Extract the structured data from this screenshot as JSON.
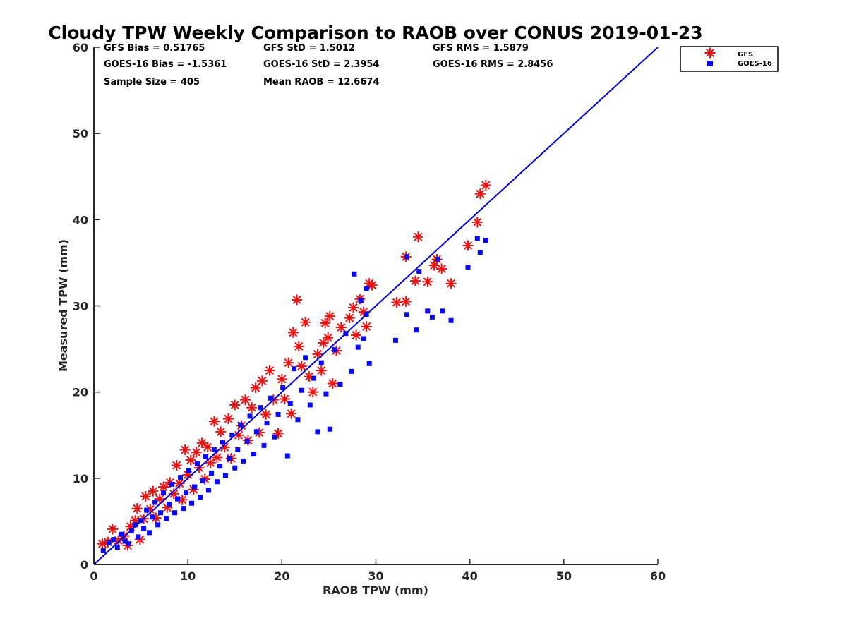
{
  "chart_data": {
    "type": "scatter",
    "title": "Cloudy TPW Weekly Comparison to RAOB over CONUS 2019-01-23",
    "xlabel": "RAOB TPW (mm)",
    "ylabel": "Measured TPW (mm)",
    "xlim": [
      0,
      60
    ],
    "ylim": [
      0,
      60
    ],
    "xticks": [
      "0",
      "10",
      "20",
      "30",
      "40",
      "50",
      "60"
    ],
    "yticks": [
      "0",
      "10",
      "20",
      "30",
      "40",
      "50",
      "60"
    ],
    "grid": false,
    "legend_position": "top-right",
    "stats": [
      [
        "GFS Bias = 0.51765",
        "GFS StD = 1.5012",
        "GFS RMS = 1.5879"
      ],
      [
        "GOES-16 Bias = -1.5361",
        "GOES-16 StD = 2.3954",
        "GOES-16 RMS = 2.8456"
      ],
      [
        "Sample Size = 405",
        "Mean RAOB = 12.6674"
      ]
    ],
    "reference_line": {
      "x": [
        0,
        60
      ],
      "y": [
        0,
        60
      ],
      "color": "#0000cc"
    },
    "series": [
      {
        "name": "GFS",
        "marker": "asterisk",
        "color": "#ee1111",
        "points": [
          [
            0.9,
            2.4
          ],
          [
            1.5,
            2.6
          ],
          [
            2.0,
            4.1
          ],
          [
            2.6,
            2.8
          ],
          [
            3.2,
            3.3
          ],
          [
            3.6,
            2.2
          ],
          [
            3.9,
            4.4
          ],
          [
            4.4,
            5.1
          ],
          [
            4.6,
            6.5
          ],
          [
            4.9,
            2.9
          ],
          [
            5.3,
            5.3
          ],
          [
            5.5,
            7.9
          ],
          [
            6.0,
            6.4
          ],
          [
            6.3,
            8.5
          ],
          [
            6.6,
            5.4
          ],
          [
            7.0,
            7.6
          ],
          [
            7.4,
            9.0
          ],
          [
            7.8,
            6.6
          ],
          [
            8.1,
            9.5
          ],
          [
            8.5,
            8.2
          ],
          [
            8.8,
            11.5
          ],
          [
            9.1,
            9.4
          ],
          [
            9.4,
            7.5
          ],
          [
            9.7,
            13.3
          ],
          [
            10.0,
            10.4
          ],
          [
            10.3,
            12.1
          ],
          [
            10.6,
            8.7
          ],
          [
            10.9,
            13.0
          ],
          [
            11.2,
            11.2
          ],
          [
            11.5,
            14.1
          ],
          [
            11.8,
            9.9
          ],
          [
            12.1,
            13.6
          ],
          [
            12.4,
            11.8
          ],
          [
            12.8,
            16.6
          ],
          [
            13.1,
            12.4
          ],
          [
            13.5,
            15.4
          ],
          [
            13.9,
            13.6
          ],
          [
            14.3,
            16.9
          ],
          [
            14.6,
            12.3
          ],
          [
            15.0,
            18.5
          ],
          [
            15.4,
            15.0
          ],
          [
            15.7,
            16.1
          ],
          [
            16.1,
            19.1
          ],
          [
            16.4,
            14.4
          ],
          [
            16.8,
            18.2
          ],
          [
            17.2,
            20.5
          ],
          [
            17.6,
            15.3
          ],
          [
            17.9,
            21.3
          ],
          [
            18.3,
            17.4
          ],
          [
            18.7,
            22.5
          ],
          [
            19.1,
            19.1
          ],
          [
            19.6,
            15.2
          ],
          [
            20.0,
            21.5
          ],
          [
            20.3,
            19.2
          ],
          [
            20.7,
            23.4
          ],
          [
            21.0,
            17.5
          ],
          [
            21.2,
            26.9
          ],
          [
            21.6,
            30.7
          ],
          [
            21.8,
            25.3
          ],
          [
            22.1,
            23.0
          ],
          [
            22.5,
            28.1
          ],
          [
            22.9,
            21.8
          ],
          [
            23.3,
            20.0
          ],
          [
            23.8,
            24.4
          ],
          [
            24.2,
            22.5
          ],
          [
            24.4,
            25.7
          ],
          [
            24.6,
            28.0
          ],
          [
            24.9,
            26.3
          ],
          [
            25.1,
            28.8
          ],
          [
            25.4,
            21.0
          ],
          [
            25.8,
            24.8
          ],
          [
            26.3,
            27.5
          ],
          [
            27.2,
            28.6
          ],
          [
            27.6,
            29.8
          ],
          [
            27.9,
            26.6
          ],
          [
            28.3,
            30.8
          ],
          [
            28.7,
            29.3
          ],
          [
            29.0,
            27.6
          ],
          [
            29.3,
            32.6
          ],
          [
            29.6,
            32.4
          ],
          [
            32.2,
            30.4
          ],
          [
            33.2,
            30.5
          ],
          [
            33.2,
            35.7
          ],
          [
            34.2,
            32.9
          ],
          [
            34.5,
            38.0
          ],
          [
            35.5,
            32.8
          ],
          [
            36.2,
            34.7
          ],
          [
            36.5,
            35.4
          ],
          [
            37.0,
            34.3
          ],
          [
            38.0,
            32.6
          ],
          [
            39.8,
            37.0
          ],
          [
            40.8,
            39.7
          ],
          [
            41.1,
            43.0
          ],
          [
            41.7,
            44.0
          ]
        ]
      },
      {
        "name": "GOES-16",
        "marker": "square",
        "color": "#0a0af0",
        "points": [
          [
            1.0,
            1.6
          ],
          [
            1.6,
            2.5
          ],
          [
            2.1,
            2.9
          ],
          [
            2.5,
            2.0
          ],
          [
            2.9,
            3.5
          ],
          [
            3.3,
            2.7
          ],
          [
            3.7,
            2.4
          ],
          [
            4.0,
            3.9
          ],
          [
            4.4,
            4.6
          ],
          [
            4.7,
            3.2
          ],
          [
            5.0,
            5.1
          ],
          [
            5.3,
            4.2
          ],
          [
            5.6,
            6.3
          ],
          [
            5.9,
            3.7
          ],
          [
            6.2,
            5.5
          ],
          [
            6.5,
            7.2
          ],
          [
            6.8,
            4.6
          ],
          [
            7.1,
            6.0
          ],
          [
            7.4,
            8.3
          ],
          [
            7.7,
            5.3
          ],
          [
            8.0,
            7.0
          ],
          [
            8.3,
            9.3
          ],
          [
            8.6,
            6.0
          ],
          [
            8.9,
            7.6
          ],
          [
            9.2,
            10.1
          ],
          [
            9.5,
            6.5
          ],
          [
            9.8,
            8.3
          ],
          [
            10.1,
            10.9
          ],
          [
            10.4,
            7.1
          ],
          [
            10.7,
            9.0
          ],
          [
            11.0,
            11.7
          ],
          [
            11.3,
            7.8
          ],
          [
            11.6,
            9.7
          ],
          [
            11.9,
            12.5
          ],
          [
            12.2,
            8.6
          ],
          [
            12.5,
            10.6
          ],
          [
            12.8,
            13.3
          ],
          [
            13.1,
            9.6
          ],
          [
            13.4,
            11.4
          ],
          [
            13.7,
            14.2
          ],
          [
            14.0,
            10.3
          ],
          [
            14.4,
            12.3
          ],
          [
            14.7,
            15.0
          ],
          [
            15.0,
            11.2
          ],
          [
            15.3,
            13.3
          ],
          [
            15.6,
            16.2
          ],
          [
            15.9,
            12.0
          ],
          [
            16.3,
            14.3
          ],
          [
            16.6,
            17.2
          ],
          [
            17.0,
            12.8
          ],
          [
            17.3,
            15.4
          ],
          [
            17.7,
            18.2
          ],
          [
            18.1,
            13.8
          ],
          [
            18.4,
            16.4
          ],
          [
            18.8,
            19.3
          ],
          [
            19.2,
            14.8
          ],
          [
            19.6,
            17.4
          ],
          [
            20.1,
            20.5
          ],
          [
            20.6,
            12.6
          ],
          [
            20.9,
            18.7
          ],
          [
            21.3,
            22.7
          ],
          [
            21.7,
            16.8
          ],
          [
            22.1,
            20.2
          ],
          [
            22.5,
            24.0
          ],
          [
            23.0,
            18.5
          ],
          [
            23.4,
            21.6
          ],
          [
            23.8,
            15.4
          ],
          [
            24.2,
            23.4
          ],
          [
            24.7,
            19.8
          ],
          [
            25.1,
            15.7
          ],
          [
            25.6,
            24.9
          ],
          [
            26.2,
            20.9
          ],
          [
            26.8,
            26.8
          ],
          [
            27.4,
            22.4
          ],
          [
            27.7,
            33.7
          ],
          [
            28.1,
            25.2
          ],
          [
            28.4,
            30.6
          ],
          [
            28.7,
            26.2
          ],
          [
            29.0,
            29.0
          ],
          [
            29.3,
            23.3
          ],
          [
            29.0,
            32.0
          ],
          [
            32.1,
            26.0
          ],
          [
            33.3,
            35.7
          ],
          [
            33.3,
            29.0
          ],
          [
            34.3,
            27.2
          ],
          [
            34.6,
            34.0
          ],
          [
            35.5,
            29.4
          ],
          [
            36.0,
            28.7
          ],
          [
            36.6,
            35.4
          ],
          [
            37.1,
            29.4
          ],
          [
            38.0,
            28.3
          ],
          [
            39.8,
            34.5
          ],
          [
            40.8,
            37.8
          ],
          [
            41.1,
            36.2
          ],
          [
            41.7,
            37.6
          ]
        ]
      }
    ]
  }
}
